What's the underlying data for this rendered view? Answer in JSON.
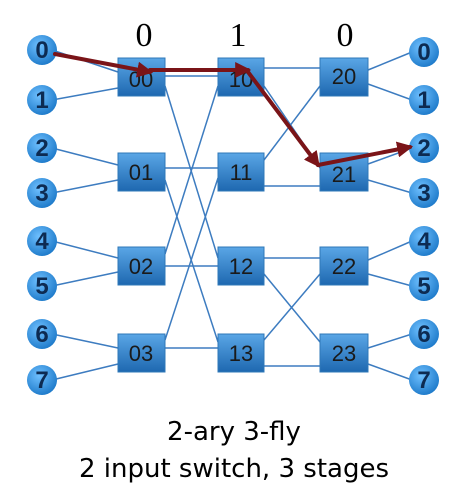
{
  "stage_digits": [
    "0",
    "1",
    "0"
  ],
  "inputs": [
    "0",
    "1",
    "2",
    "3",
    "4",
    "5",
    "6",
    "7"
  ],
  "outputs": [
    "0",
    "1",
    "2",
    "3",
    "4",
    "5",
    "6",
    "7"
  ],
  "stage1": [
    "00",
    "01",
    "02",
    "03"
  ],
  "stage2": [
    "10",
    "11",
    "12",
    "13"
  ],
  "stage3": [
    "20",
    "21",
    "22",
    "23"
  ],
  "caption": {
    "line1": "2-ary 3-fly",
    "line2": "2 input switch, 3 stages"
  },
  "colors": {
    "wire": "#3d7cc0",
    "switch_fill_top": "#4a9be0",
    "switch_fill_bottom": "#1f6ab2",
    "terminal": "#2a8ad8",
    "route": "#7a1418"
  },
  "route": [
    "input-0",
    "switch-00",
    "switch-10",
    "switch-21",
    "output-2"
  ]
}
